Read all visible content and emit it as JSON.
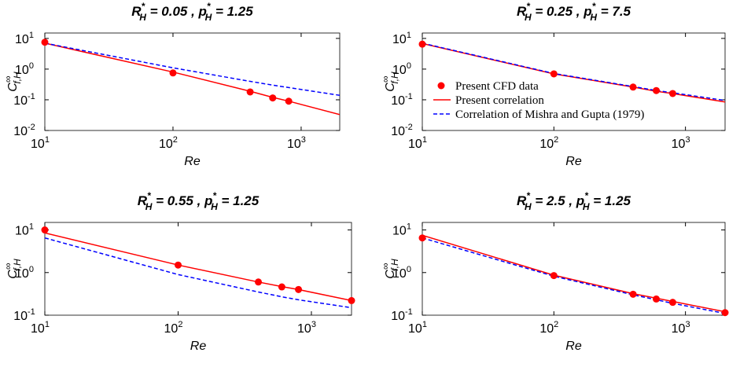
{
  "chart_data": [
    {
      "type": "line",
      "title": [
        "R",
        "*",
        "H",
        " = 0.05 , p",
        "*",
        "H",
        " = 1.25"
      ],
      "xlabel": "Re",
      "ylabel": [
        "C",
        "∞",
        "f,H"
      ],
      "log_x": true,
      "log_y": true,
      "xlim": [
        10,
        2000
      ],
      "ylim": [
        0.01,
        15
      ],
      "xticks": [
        {
          "value": 10,
          "label": [
            "10",
            "1"
          ]
        },
        {
          "value": 100,
          "label": [
            "10",
            "2"
          ]
        },
        {
          "value": 1000,
          "label": [
            "10",
            "3"
          ]
        }
      ],
      "yticks": [
        {
          "value": 0.01,
          "label": [
            "10",
            "-2"
          ]
        },
        {
          "value": 0.1,
          "label": [
            "10",
            "-1"
          ]
        },
        {
          "value": 1,
          "label": [
            "10",
            "0"
          ]
        },
        {
          "value": 10,
          "label": [
            "10",
            "1"
          ]
        }
      ],
      "x": [
        10,
        100,
        400,
        600,
        800,
        2000
      ],
      "series": [
        {
          "style": "markers",
          "color": "#ff0000",
          "values": [
            7.5,
            0.75,
            0.18,
            0.115,
            0.09,
            null
          ]
        },
        {
          "style": "solid",
          "color": "#ff0000",
          "values": [
            7,
            0.8,
            0.19,
            0.12,
            0.09,
            0.033
          ]
        },
        {
          "style": "dashed",
          "color": "#0000ff",
          "values": [
            7,
            1.1,
            0.4,
            0.3,
            0.25,
            0.14
          ]
        }
      ]
    },
    {
      "type": "line",
      "title": [
        "R",
        "*",
        "H",
        " = 0.25 , p",
        "*",
        "H",
        " = 7.5"
      ],
      "xlabel": "Re",
      "ylabel": [
        "C",
        "∞",
        "f,H"
      ],
      "log_x": true,
      "log_y": true,
      "xlim": [
        10,
        2000
      ],
      "ylim": [
        0.01,
        15
      ],
      "xticks": [
        {
          "value": 10,
          "label": [
            "10",
            "1"
          ]
        },
        {
          "value": 100,
          "label": [
            "10",
            "2"
          ]
        },
        {
          "value": 1000,
          "label": [
            "10",
            "3"
          ]
        }
      ],
      "yticks": [
        {
          "value": 0.01,
          "label": [
            "10",
            "-2"
          ]
        },
        {
          "value": 0.1,
          "label": [
            "10",
            "-1"
          ]
        },
        {
          "value": 1,
          "label": [
            "10",
            "0"
          ]
        },
        {
          "value": 10,
          "label": [
            "10",
            "1"
          ]
        }
      ],
      "x": [
        10,
        100,
        400,
        600,
        800,
        2000
      ],
      "legend": "left",
      "series": [
        {
          "name": "Present CFD data",
          "style": "markers",
          "color": "#ff0000",
          "values": [
            6.5,
            0.7,
            0.26,
            0.2,
            0.16,
            null
          ]
        },
        {
          "name": "Present correlation",
          "style": "solid",
          "color": "#ff0000",
          "values": [
            6.8,
            0.7,
            0.26,
            0.19,
            0.16,
            0.085
          ]
        },
        {
          "name": "Correlation of Mishra and Gupta (1979)",
          "style": "dashed",
          "color": "#0000ff",
          "values": [
            7,
            0.72,
            0.27,
            0.2,
            0.17,
            0.095
          ]
        }
      ]
    },
    {
      "type": "line",
      "title": [
        "R",
        "*",
        "H",
        " = 0.55 , p",
        "*",
        "H",
        " = 1.25"
      ],
      "xlabel": "Re",
      "ylabel": [
        "C",
        "∞",
        "f,H"
      ],
      "log_x": true,
      "log_y": true,
      "xlim": [
        10,
        2000
      ],
      "ylim": [
        0.1,
        15
      ],
      "xticks": [
        {
          "value": 10,
          "label": [
            "10",
            "1"
          ]
        },
        {
          "value": 100,
          "label": [
            "10",
            "2"
          ]
        },
        {
          "value": 1000,
          "label": [
            "10",
            "3"
          ]
        }
      ],
      "yticks": [
        {
          "value": 0.1,
          "label": [
            "10",
            "-1"
          ]
        },
        {
          "value": 1,
          "label": [
            "10",
            "0"
          ]
        },
        {
          "value": 10,
          "label": [
            "10",
            "1"
          ]
        }
      ],
      "x": [
        10,
        100,
        400,
        600,
        800,
        2000
      ],
      "series": [
        {
          "style": "markers",
          "color": "#ff0000",
          "values": [
            10,
            1.5,
            0.6,
            0.46,
            0.4,
            0.22
          ]
        },
        {
          "style": "solid",
          "color": "#ff0000",
          "values": [
            8.5,
            1.5,
            0.6,
            0.47,
            0.4,
            0.22
          ]
        },
        {
          "style": "dashed",
          "color": "#0000ff",
          "values": [
            6.5,
            0.9,
            0.35,
            0.27,
            0.23,
            0.15
          ]
        }
      ]
    },
    {
      "type": "line",
      "title": [
        "R",
        "*",
        "H",
        " = 2.5 , p",
        "*",
        "H",
        " = 1.25"
      ],
      "xlabel": "Re",
      "ylabel": [
        "C",
        "∞",
        "f,H"
      ],
      "log_x": true,
      "log_y": true,
      "xlim": [
        10,
        2000
      ],
      "ylim": [
        0.1,
        15
      ],
      "xticks": [
        {
          "value": 10,
          "label": [
            "10",
            "1"
          ]
        },
        {
          "value": 100,
          "label": [
            "10",
            "2"
          ]
        },
        {
          "value": 1000,
          "label": [
            "10",
            "3"
          ]
        }
      ],
      "yticks": [
        {
          "value": 0.1,
          "label": [
            "10",
            "-1"
          ]
        },
        {
          "value": 1,
          "label": [
            "10",
            "0"
          ]
        },
        {
          "value": 10,
          "label": [
            "10",
            "1"
          ]
        }
      ],
      "x": [
        10,
        100,
        400,
        600,
        800,
        2000
      ],
      "series": [
        {
          "style": "markers",
          "color": "#ff0000",
          "values": [
            6.5,
            0.85,
            0.31,
            0.24,
            0.2,
            0.115
          ]
        },
        {
          "style": "solid",
          "color": "#ff0000",
          "values": [
            7.5,
            0.87,
            0.32,
            0.25,
            0.21,
            0.12
          ]
        },
        {
          "style": "dashed",
          "color": "#0000ff",
          "values": [
            6.5,
            0.82,
            0.3,
            0.23,
            0.19,
            0.11
          ]
        }
      ]
    }
  ]
}
